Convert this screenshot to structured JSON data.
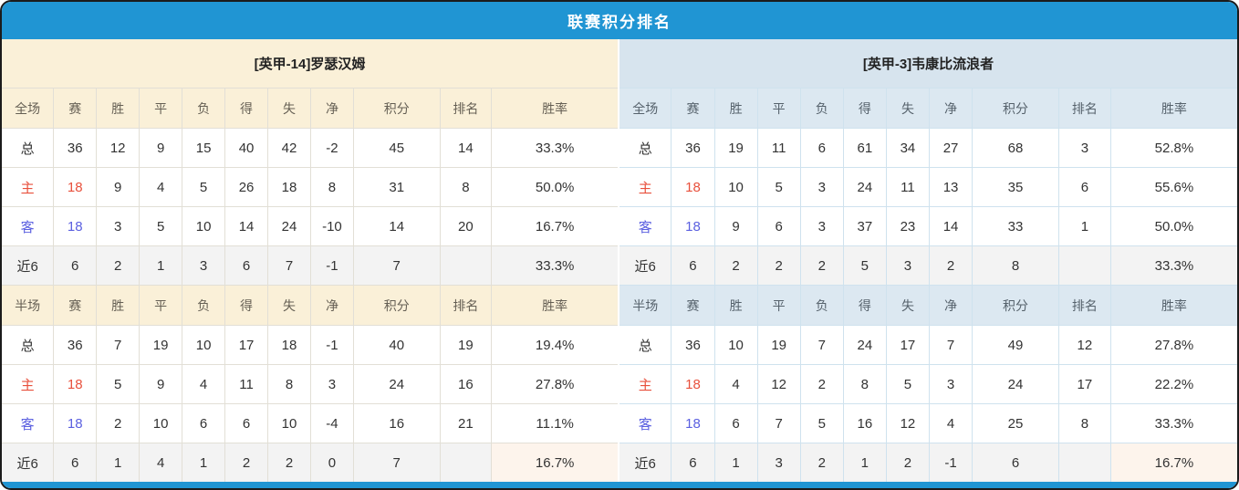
{
  "title": "联赛积分排名",
  "colors": {
    "header_bar": "#2095d3",
    "points_red": "#f23b1c",
    "rank_blue": "#2f8ce0",
    "home_row_red": "#e8503c",
    "away_row_blue": "#5a5fe0",
    "left_theme_bg": "#faf0d8",
    "right_theme_bg": "#d7e4ee",
    "right_header_bg": "#dce8f1",
    "last6_row_bg": "#f3f3f3",
    "half_last6_rate_bg": "#fdf4ec"
  },
  "stat_columns": [
    "赛",
    "胜",
    "平",
    "负",
    "得",
    "失",
    "净",
    "积分",
    "排名",
    "胜率"
  ],
  "teams": [
    {
      "name": "[英甲-14]罗瑟汉姆",
      "sections": [
        {
          "label": "全场",
          "rows": [
            {
              "label": "总",
              "cells": [
                "36",
                "12",
                "9",
                "15",
                "40",
                "42",
                "-2",
                "45",
                "14",
                "33.3%"
              ]
            },
            {
              "label": "主",
              "cells": [
                "18",
                "9",
                "4",
                "5",
                "26",
                "18",
                "8",
                "31",
                "8",
                "50.0%"
              ]
            },
            {
              "label": "客",
              "cells": [
                "18",
                "3",
                "5",
                "10",
                "14",
                "24",
                "-10",
                "14",
                "20",
                "16.7%"
              ]
            },
            {
              "label": "近6",
              "cells": [
                "6",
                "2",
                "1",
                "3",
                "6",
                "7",
                "-1",
                "7",
                "",
                "33.3%"
              ]
            }
          ]
        },
        {
          "label": "半场",
          "rows": [
            {
              "label": "总",
              "cells": [
                "36",
                "7",
                "19",
                "10",
                "17",
                "18",
                "-1",
                "40",
                "19",
                "19.4%"
              ]
            },
            {
              "label": "主",
              "cells": [
                "18",
                "5",
                "9",
                "4",
                "11",
                "8",
                "3",
                "24",
                "16",
                "27.8%"
              ]
            },
            {
              "label": "客",
              "cells": [
                "18",
                "2",
                "10",
                "6",
                "6",
                "10",
                "-4",
                "16",
                "21",
                "11.1%"
              ]
            },
            {
              "label": "近6",
              "cells": [
                "6",
                "1",
                "4",
                "1",
                "2",
                "2",
                "0",
                "7",
                "",
                "16.7%"
              ]
            }
          ]
        }
      ]
    },
    {
      "name": "[英甲-3]韦康比流浪者",
      "sections": [
        {
          "label": "全场",
          "rows": [
            {
              "label": "总",
              "cells": [
                "36",
                "19",
                "11",
                "6",
                "61",
                "34",
                "27",
                "68",
                "3",
                "52.8%"
              ]
            },
            {
              "label": "主",
              "cells": [
                "18",
                "10",
                "5",
                "3",
                "24",
                "11",
                "13",
                "35",
                "6",
                "55.6%"
              ]
            },
            {
              "label": "客",
              "cells": [
                "18",
                "9",
                "6",
                "3",
                "37",
                "23",
                "14",
                "33",
                "1",
                "50.0%"
              ]
            },
            {
              "label": "近6",
              "cells": [
                "6",
                "2",
                "2",
                "2",
                "5",
                "3",
                "2",
                "8",
                "",
                "33.3%"
              ]
            }
          ]
        },
        {
          "label": "半场",
          "rows": [
            {
              "label": "总",
              "cells": [
                "36",
                "10",
                "19",
                "7",
                "24",
                "17",
                "7",
                "49",
                "12",
                "27.8%"
              ]
            },
            {
              "label": "主",
              "cells": [
                "18",
                "4",
                "12",
                "2",
                "8",
                "5",
                "3",
                "24",
                "17",
                "22.2%"
              ]
            },
            {
              "label": "客",
              "cells": [
                "18",
                "6",
                "7",
                "5",
                "16",
                "12",
                "4",
                "25",
                "8",
                "33.3%"
              ]
            },
            {
              "label": "近6",
              "cells": [
                "6",
                "1",
                "3",
                "2",
                "1",
                "2",
                "-1",
                "6",
                "",
                "16.7%"
              ]
            }
          ]
        }
      ]
    }
  ]
}
